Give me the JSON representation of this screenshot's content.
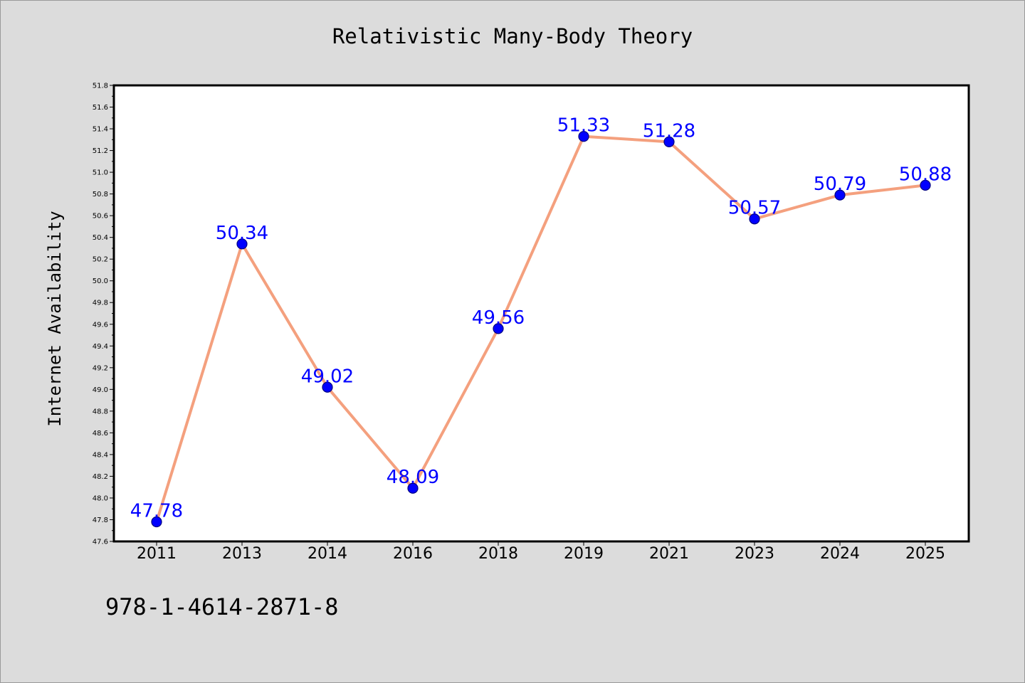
{
  "chart_data": {
    "type": "line",
    "title": "Relativistic Many-Body Theory",
    "xlabel": "",
    "ylabel": "Internet Availability",
    "categories": [
      "2011",
      "2013",
      "2014",
      "2016",
      "2018",
      "2019",
      "2021",
      "2023",
      "2024",
      "2025"
    ],
    "series": [
      {
        "values": [
          47.78,
          50.34,
          49.02,
          48.09,
          49.56,
          51.33,
          51.28,
          50.57,
          50.79,
          50.88
        ],
        "data_labels": [
          "47.78",
          "50.34",
          "49.02",
          "48.09",
          "49.56",
          "51.33",
          "51.28",
          "50.57",
          "50.79",
          "50.88"
        ]
      }
    ],
    "ylim": [
      47.6,
      51.8
    ],
    "y_ticks": [
      "47.6",
      "47.8",
      "48.0",
      "48.2",
      "48.4",
      "48.6",
      "48.8",
      "49.0",
      "49.2",
      "49.4",
      "49.6",
      "49.8",
      "50.0",
      "50.2",
      "50.4",
      "50.6",
      "50.8",
      "51.0",
      "51.2",
      "51.4",
      "51.6",
      "51.8"
    ],
    "grid": false,
    "legend": "none",
    "colors": {
      "line": "#f4a07e",
      "marker": "#0000ff",
      "marker_edge": "#000080",
      "label": "#0000ff",
      "plot_bg": "#ffffff",
      "page_bg": "#dcdcdc"
    }
  },
  "footer_text": "978-1-4614-2871-8"
}
